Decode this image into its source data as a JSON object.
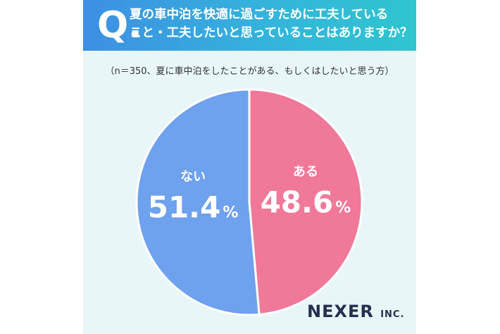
{
  "header": {
    "q_mark": "Q.",
    "question_line1": "夏の車中泊を快適に過ごすために工夫している",
    "question_line2": "こと・工夫したいと思っていることはありますか？"
  },
  "subtitle": "（n＝350、夏に車中泊をしたことがある、もしくはしたいと思う方）",
  "brand": {
    "name": "NEXER",
    "suffix": "INC."
  },
  "colors": {
    "header_start": "#3d8fe3",
    "header_end": "#2fc5cf",
    "background": "#e9f6f8",
    "ari": "#f07899",
    "nai": "#6ea1ee"
  },
  "chart_data": {
    "type": "pie",
    "start_angle_deg": 0,
    "direction": "clockwise",
    "slices": [
      {
        "label": "ある",
        "value": 48.6,
        "display": "48.6",
        "unit": "%",
        "color": "#f07899"
      },
      {
        "label": "ない",
        "value": 51.4,
        "display": "51.4",
        "unit": "%",
        "color": "#6ea1ee"
      }
    ]
  }
}
